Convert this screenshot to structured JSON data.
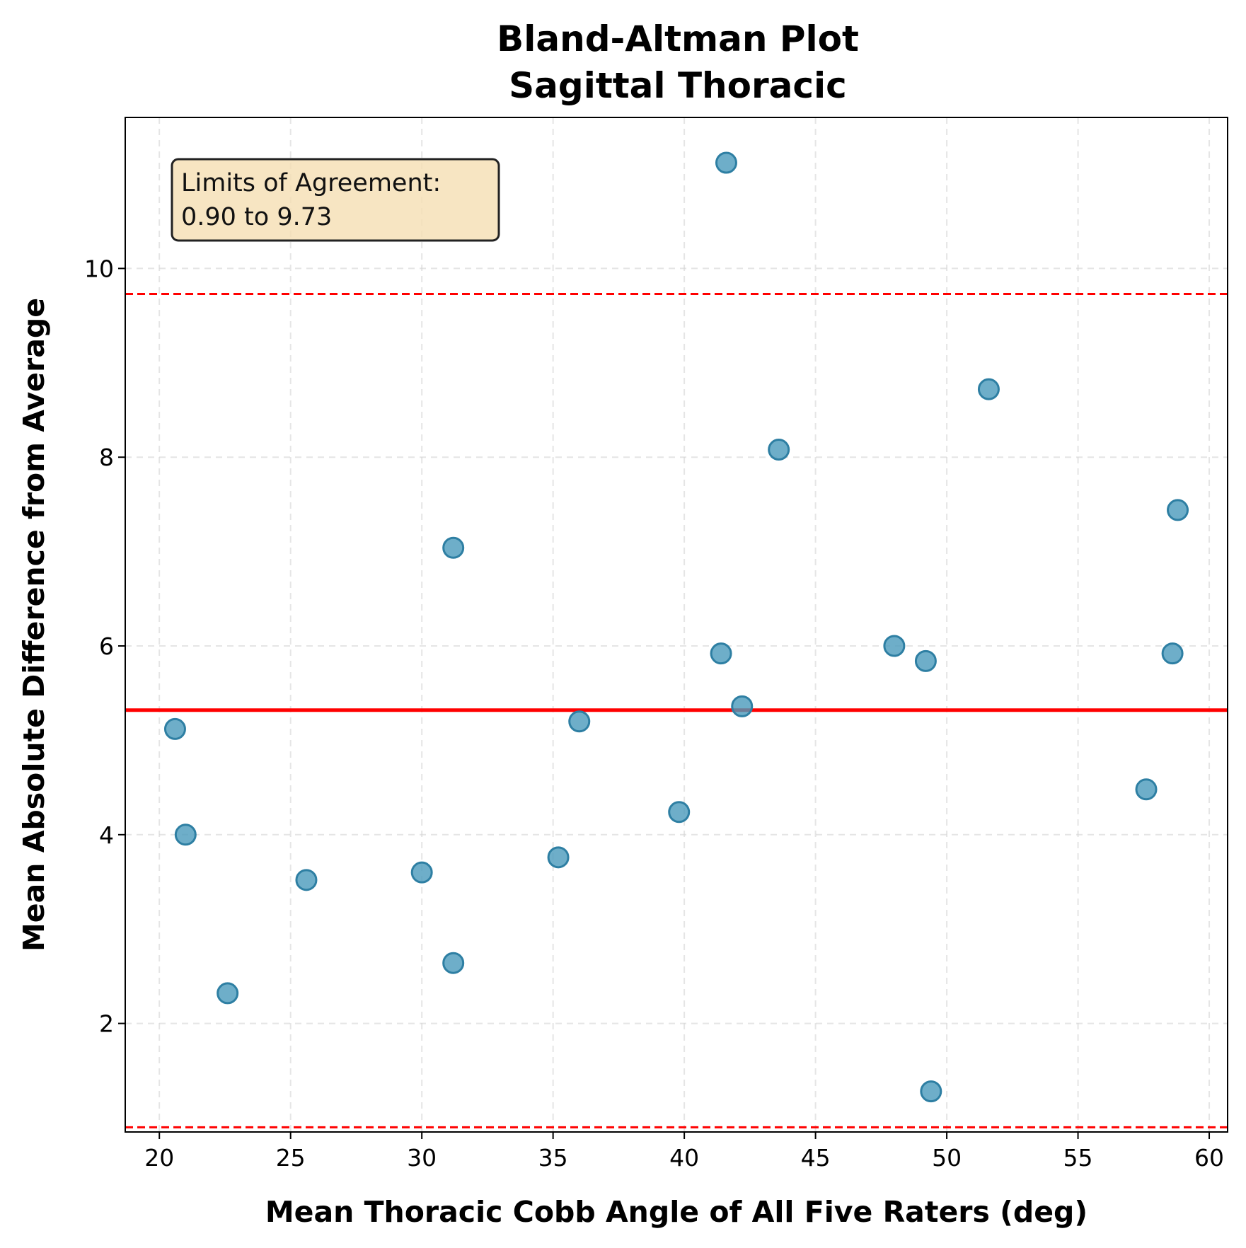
{
  "chart_data": {
    "type": "scatter",
    "title": "Bland-Altman Plot",
    "subtitle": "Sagittal Thoracic",
    "xlabel": "Mean Thoracic Cobb Angle of All Five Raters (deg)",
    "ylabel": "Mean Absolute Difference from Average",
    "xlim": [
      18.7,
      60.7
    ],
    "ylim": [
      0.85,
      11.6
    ],
    "x_ticks": [
      20,
      25,
      30,
      35,
      40,
      45,
      50,
      55,
      60
    ],
    "y_ticks": [
      2,
      4,
      6,
      8,
      10
    ],
    "grid": true,
    "points": [
      {
        "x": 20.6,
        "y": 5.12
      },
      {
        "x": 21.0,
        "y": 4.0
      },
      {
        "x": 22.6,
        "y": 2.32
      },
      {
        "x": 25.6,
        "y": 3.52
      },
      {
        "x": 30.0,
        "y": 3.6
      },
      {
        "x": 31.2,
        "y": 7.04
      },
      {
        "x": 31.2,
        "y": 2.64
      },
      {
        "x": 35.2,
        "y": 3.76
      },
      {
        "x": 36.0,
        "y": 5.2
      },
      {
        "x": 39.8,
        "y": 4.24
      },
      {
        "x": 41.4,
        "y": 5.92
      },
      {
        "x": 41.6,
        "y": 11.12
      },
      {
        "x": 42.2,
        "y": 5.36
      },
      {
        "x": 43.6,
        "y": 8.08
      },
      {
        "x": 48.0,
        "y": 6.0
      },
      {
        "x": 49.2,
        "y": 5.84
      },
      {
        "x": 49.4,
        "y": 1.28
      },
      {
        "x": 51.6,
        "y": 8.72
      },
      {
        "x": 57.6,
        "y": 4.48
      },
      {
        "x": 58.6,
        "y": 5.92
      },
      {
        "x": 58.8,
        "y": 7.44
      }
    ],
    "mean_line": 5.32,
    "lower_limit": 0.9,
    "upper_limit": 9.73,
    "annotation_title": "Limits of Agreement:",
    "annotation_range": "0.90 to 9.73",
    "annotation_position": "top-left",
    "colors": {
      "points": "#4a9abb",
      "point_edge": "#2e7fa3",
      "mean_line": "#ff0000",
      "limit_lines": "#ff0000",
      "annotation_bg": "#f5deb3"
    }
  }
}
